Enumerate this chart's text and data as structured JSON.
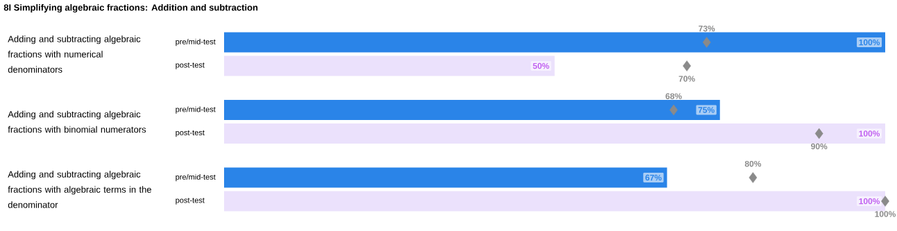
{
  "chart_data": {
    "type": "bar",
    "orientation": "horizontal",
    "title": "8I Simplifying algebraic fractions: Addition and subtraction",
    "categories": [
      "Adding and subtracting algebraic fractions with numerical denominators",
      "Adding and subtracting algebraic fractions with binomial numerators",
      "Adding and subtracting algebraic fractions with algebraic terms in the denominator"
    ],
    "series": [
      {
        "name": "pre/mid-test",
        "color": "#2a84e8",
        "values": [
          100,
          75,
          67
        ],
        "value_labels": [
          "100%",
          "75%",
          "67%"
        ]
      },
      {
        "name": "post-test",
        "color": "#ebe1fc",
        "values": [
          50,
          100,
          100
        ],
        "value_labels": [
          "50%",
          "100%",
          "100%"
        ]
      },
      {
        "type": "scatter",
        "color": "#8a8a8a",
        "values": [
          73,
          68,
          80
        ],
        "value_labels": [
          "73%",
          "68%",
          "80%"
        ]
      },
      {
        "type": "scatter",
        "color": "#8a8a8a",
        "values": [
          70,
          90,
          100
        ],
        "value_labels": [
          "70%",
          "90%",
          "100%"
        ]
      }
    ],
    "marker": "diamond",
    "xlim": [
      0,
      100
    ],
    "tick_labels": false
  }
}
